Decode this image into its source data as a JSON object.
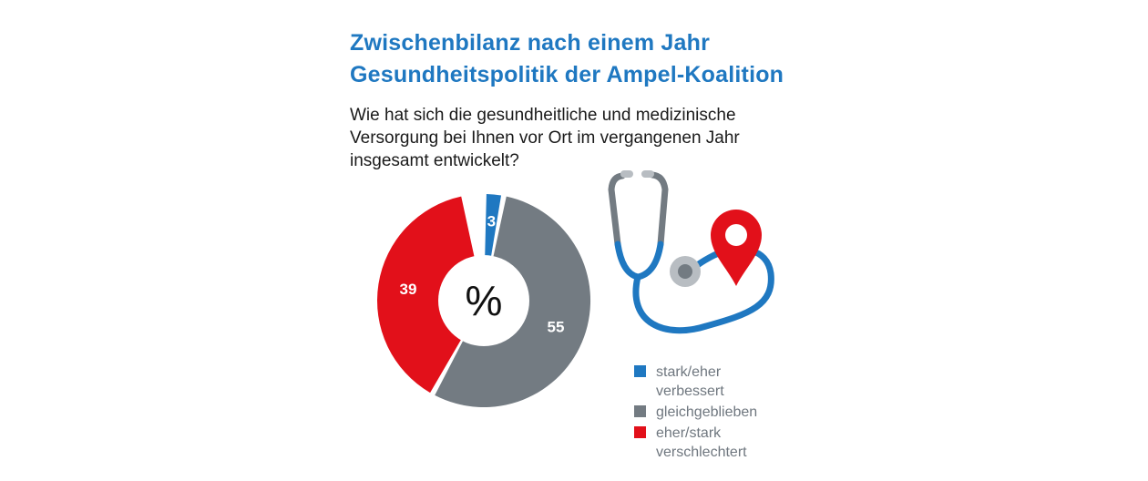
{
  "title": {
    "line1": "Zwischenbilanz nach einem Jahr",
    "line2": "Gesundheitspolitik der Ampel-Koalition"
  },
  "question": {
    "line1": "Wie hat sich die gesundheitliche und medizinische",
    "line2": "Versorgung bei Ihnen vor Ort im vergangenen Jahr",
    "line3": "insgesamt entwickelt?"
  },
  "chart_data": {
    "type": "pie",
    "variant": "donut",
    "center_label": "%",
    "categories": [
      "stark/eher verbessert",
      "gleichgeblieben",
      "eher/stark verschlechtert"
    ],
    "values": [
      3,
      55,
      39
    ],
    "colors": [
      "#1f78c1",
      "#737b82",
      "#e2101a"
    ]
  },
  "legend": {
    "placement": "bottom-right",
    "items": [
      {
        "line1": "stark/eher",
        "line2": "verbessert",
        "color": "#1f78c1"
      },
      {
        "line1": "gleichgeblieben",
        "line2": "",
        "color": "#737b82"
      },
      {
        "line1": "eher/stark",
        "line2": "verschlechtert",
        "color": "#e2101a"
      }
    ]
  },
  "illustration": {
    "icon": "stethoscope-with-location-pin-icon",
    "colors": {
      "tube": "#1f78c1",
      "metal": "#737b82",
      "pin": "#e2101a",
      "earpiece": "#b8bdc2"
    }
  }
}
